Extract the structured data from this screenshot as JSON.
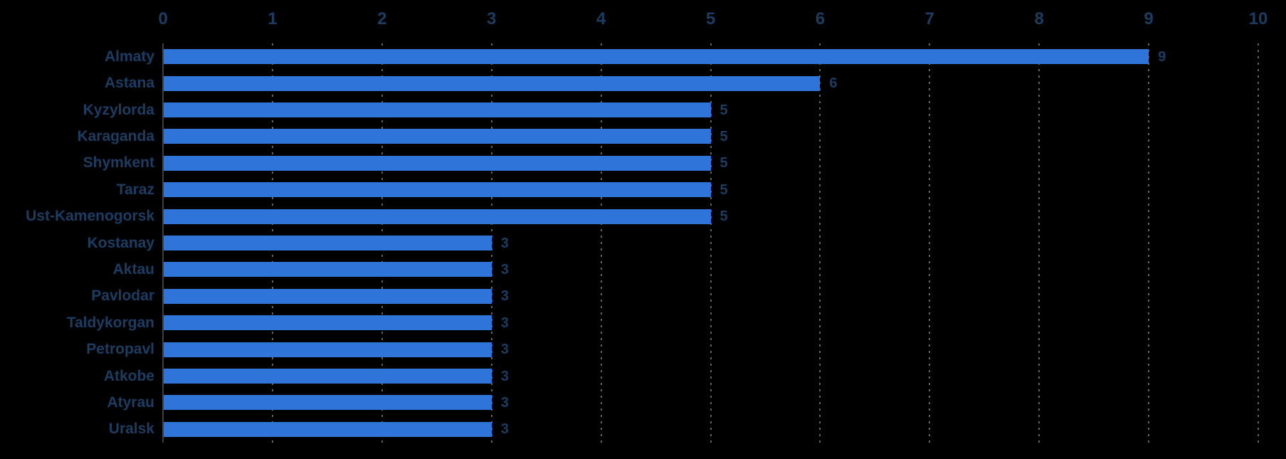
{
  "canvas": {
    "background": "#000000"
  },
  "chart_data": {
    "type": "bar",
    "orientation": "horizontal",
    "title": "",
    "xlabel": "",
    "ylabel": "",
    "categories": [
      "Almaty",
      "Astana",
      "Kyzylorda",
      "Karaganda",
      "Shymkent",
      "Taraz",
      "Ust-Kamenogorsk",
      "Kostanay",
      "Aktau",
      "Pavlodar",
      "Taldykorgan",
      "Petropavl",
      "Atkobe",
      "Atyrau",
      "Uralsk"
    ],
    "values": [
      9,
      6,
      5,
      5,
      5,
      5,
      5,
      3,
      3,
      3,
      3,
      3,
      3,
      3,
      3
    ],
    "data_labels": [
      9,
      6,
      5,
      5,
      5,
      5,
      5,
      3,
      3,
      3,
      3,
      3,
      3,
      3,
      3
    ],
    "x_axis": {
      "position": "top",
      "min": 0,
      "max": 10,
      "ticks": [
        0,
        1,
        2,
        3,
        4,
        5,
        6,
        7,
        8,
        9,
        10
      ]
    },
    "grid": "vertical-dotted",
    "legend": "none",
    "colors": {
      "bar": "#2e74d9",
      "text": "#1d3c62",
      "grid_dots": "#616161",
      "axis_line": "#3f3f3f",
      "background": "#000000"
    }
  }
}
